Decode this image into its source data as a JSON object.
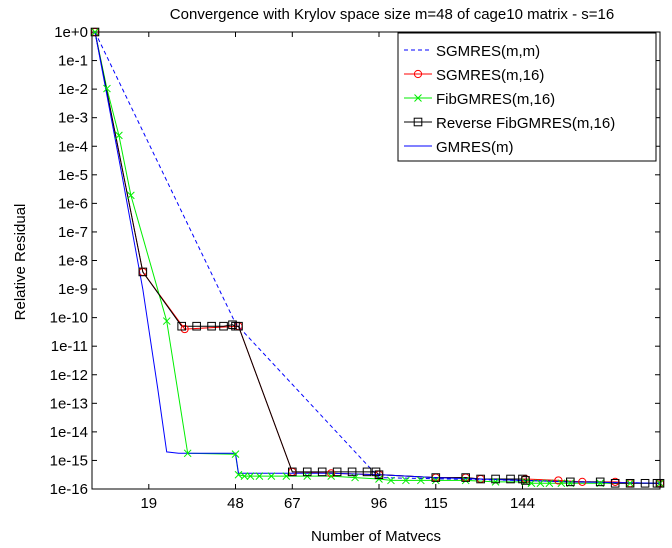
{
  "chart_data": {
    "type": "line",
    "title": "Convergence with Krylov space size m=48 of cage10 matrix - s=16",
    "xlabel": "Number of Matvecs",
    "ylabel": "Relative Residual",
    "y_scale": "log",
    "xlim": [
      0,
      190
    ],
    "ylim_exponents": [
      -16,
      0
    ],
    "x_ticks": [
      19,
      48,
      67,
      96,
      115,
      144
    ],
    "y_tick_labels": [
      "1e+0",
      "1e-1",
      "1e-2",
      "1e-3",
      "1e-4",
      "1e-5",
      "1e-6",
      "1e-7",
      "1e-8",
      "1e-9",
      "1e-10",
      "1e-11",
      "1e-12",
      "1e-13",
      "1e-14",
      "1e-15",
      "1e-16"
    ],
    "legend_position": "top-right",
    "series": [
      {
        "name": "SGMRES(m,m)",
        "color": "#0000ff",
        "dash": "dashed",
        "marker": "none",
        "x": [
          1,
          48,
          96,
          190
        ],
        "log10_y": [
          0,
          -10.2,
          -15.6,
          -15.8
        ]
      },
      {
        "name": "SGMRES(m,16)",
        "color": "#ff0000",
        "dash": "solid",
        "marker": "circle",
        "x": [
          1,
          17,
          31,
          49,
          67,
          80,
          96,
          115,
          125,
          130,
          145,
          156,
          164,
          175,
          180,
          190
        ],
        "log10_y": [
          0,
          -8.4,
          -10.4,
          -10.3,
          -15.4,
          -15.45,
          -15.5,
          -15.6,
          -15.6,
          -15.65,
          -15.65,
          -15.7,
          -15.75,
          -15.75,
          -15.8,
          -15.8
        ]
      },
      {
        "name": "FibGMRES(m,16)",
        "color": "#00ee00",
        "dash": "solid",
        "marker": "x",
        "x": [
          1,
          5,
          9,
          13,
          25,
          32,
          48,
          49,
          51,
          53,
          56,
          60,
          65,
          72,
          80,
          88,
          96,
          100,
          105,
          110,
          115,
          125,
          135,
          145,
          147,
          150,
          153,
          157,
          160,
          170,
          180,
          190
        ],
        "log10_y": [
          0,
          -1.98,
          -3.62,
          -5.72,
          -10.12,
          -14.75,
          -14.78,
          -15.5,
          -15.55,
          -15.55,
          -15.55,
          -15.55,
          -15.55,
          -15.55,
          -15.55,
          -15.6,
          -15.65,
          -15.7,
          -15.7,
          -15.7,
          -15.7,
          -15.7,
          -15.75,
          -15.75,
          -15.8,
          -15.8,
          -15.8,
          -15.8,
          -15.8,
          -15.8,
          -15.8,
          -15.8
        ]
      },
      {
        "name": "Reverse FibGMRES(m,16)",
        "color": "#000000",
        "dash": "solid",
        "marker": "square",
        "x": [
          1,
          17,
          30,
          35,
          40,
          44,
          47,
          48,
          49,
          67,
          72,
          77,
          82,
          87,
          92,
          95,
          96,
          115,
          125,
          130,
          135,
          140,
          144,
          145,
          160,
          170,
          175,
          180,
          185,
          189,
          190
        ],
        "log10_y": [
          0,
          -8.4,
          -10.3,
          -10.3,
          -10.3,
          -10.3,
          -10.25,
          -10.3,
          -10.3,
          -15.4,
          -15.4,
          -15.4,
          -15.4,
          -15.4,
          -15.4,
          -15.4,
          -15.5,
          -15.6,
          -15.6,
          -15.65,
          -15.65,
          -15.65,
          -15.65,
          -15.7,
          -15.75,
          -15.75,
          -15.8,
          -15.8,
          -15.8,
          -15.8,
          -15.8
        ]
      },
      {
        "name": "GMRES(m)",
        "color": "#0000ff",
        "dash": "solid",
        "marker": "none",
        "x": [
          1,
          10,
          17,
          22,
          25,
          29,
          33,
          40,
          48,
          49,
          55,
          65,
          80,
          96,
          115,
          144,
          160,
          190
        ],
        "log10_y": [
          0,
          -5,
          -9,
          -12.5,
          -14.7,
          -14.75,
          -14.75,
          -14.75,
          -14.75,
          -15.45,
          -15.45,
          -15.45,
          -15.45,
          -15.5,
          -15.6,
          -15.7,
          -15.75,
          -15.8
        ]
      }
    ]
  }
}
